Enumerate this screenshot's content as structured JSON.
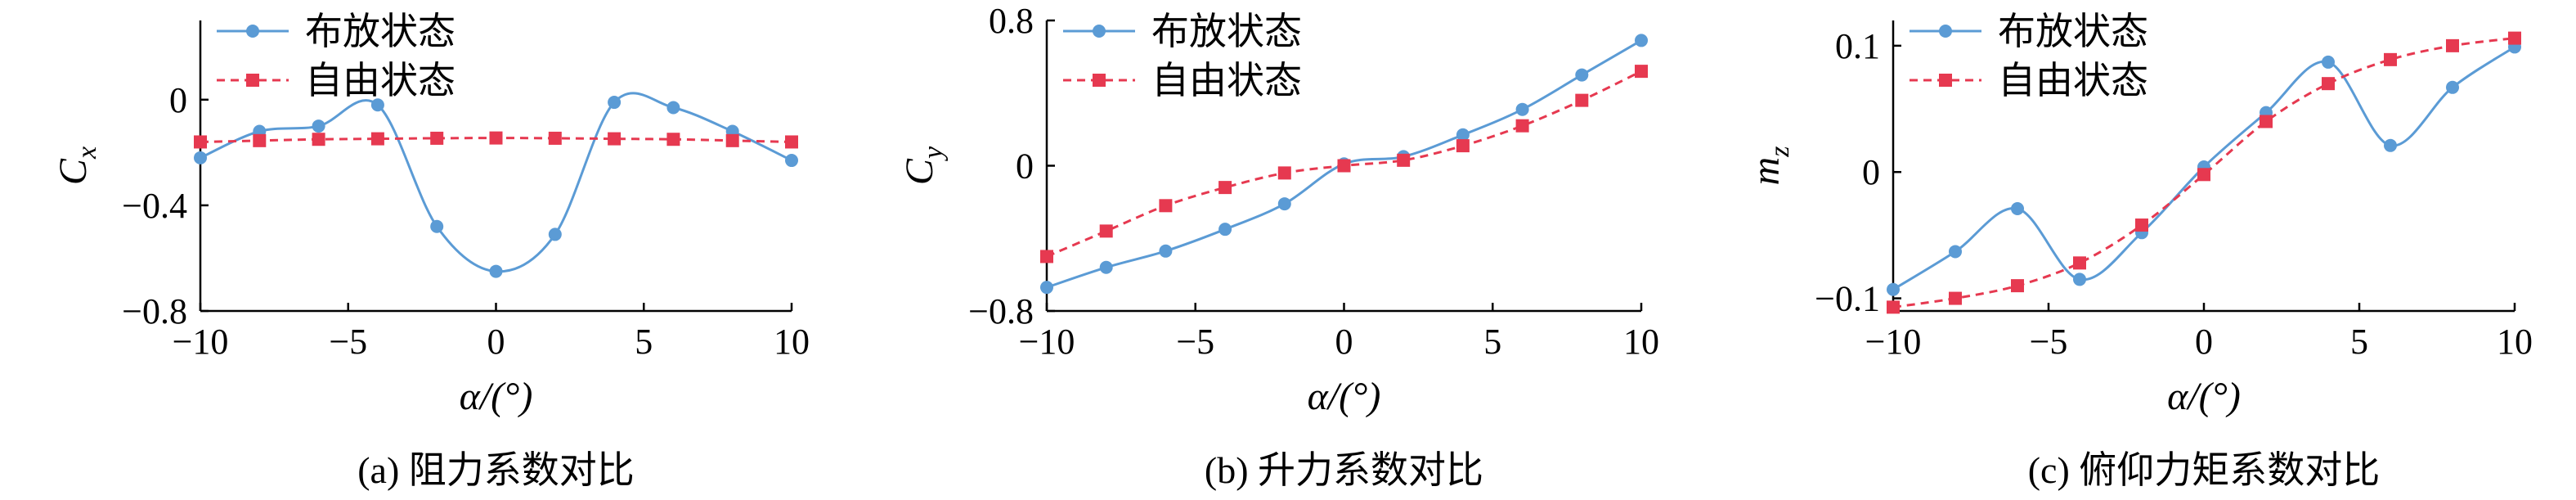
{
  "colors": {
    "deployed": "#5b9bd5",
    "free": "#e63950"
  },
  "chart_data": [
    {
      "type": "line",
      "caption": "(a) 阻力系数对比",
      "ylabel": "C",
      "ylabel_sub": "x",
      "xlabel": "α/(°)",
      "xlim": [
        -10,
        10
      ],
      "ylim": [
        -0.8,
        0.3
      ],
      "xticks": [
        -10,
        -5,
        0,
        5,
        10
      ],
      "xtick_labels": [
        "−10",
        "−5",
        "0",
        "5",
        "10"
      ],
      "yticks": [
        0,
        -0.4,
        -0.8
      ],
      "ytick_labels": [
        "0",
        "−0.4",
        "−0.8"
      ],
      "legend": "top",
      "series": [
        {
          "name": "布放状态",
          "style": "solid-circle",
          "x": [
            -10,
            -8,
            -6,
            -4,
            -2,
            0,
            2,
            4,
            6,
            8,
            10
          ],
          "y": [
            -0.22,
            -0.12,
            -0.1,
            -0.02,
            -0.48,
            -0.65,
            -0.51,
            -0.01,
            -0.03,
            -0.12,
            -0.23
          ]
        },
        {
          "name": "自由状态",
          "style": "dashed-square",
          "x": [
            -10,
            -8,
            -6,
            -4,
            -2,
            0,
            2,
            4,
            6,
            8,
            10
          ],
          "y": [
            -0.16,
            -0.155,
            -0.15,
            -0.148,
            -0.146,
            -0.145,
            -0.146,
            -0.148,
            -0.15,
            -0.155,
            -0.16
          ]
        }
      ]
    },
    {
      "type": "line",
      "caption": "(b) 升力系数对比",
      "ylabel": "C",
      "ylabel_sub": "y",
      "xlabel": "α/(°)",
      "xlim": [
        -10,
        10
      ],
      "ylim": [
        -0.8,
        0.8
      ],
      "xticks": [
        -10,
        -5,
        0,
        5,
        10
      ],
      "xtick_labels": [
        "−10",
        "−5",
        "0",
        "5",
        "10"
      ],
      "yticks": [
        0.8,
        0,
        -0.8
      ],
      "ytick_labels": [
        "0.8",
        "0",
        "−0.8"
      ],
      "legend": "top",
      "series": [
        {
          "name": "布放状态",
          "style": "solid-circle",
          "x": [
            -10,
            -8,
            -6,
            -4,
            -2,
            0,
            2,
            4,
            6,
            8,
            10
          ],
          "y": [
            -0.67,
            -0.56,
            -0.47,
            -0.35,
            -0.21,
            0.01,
            0.05,
            0.17,
            0.31,
            0.5,
            0.69
          ]
        },
        {
          "name": "自由状态",
          "style": "dashed-square",
          "x": [
            -10,
            -8,
            -6,
            -4,
            -2,
            0,
            2,
            4,
            6,
            8,
            10
          ],
          "y": [
            -0.5,
            -0.36,
            -0.22,
            -0.12,
            -0.04,
            0.0,
            0.03,
            0.11,
            0.22,
            0.36,
            0.52
          ]
        }
      ]
    },
    {
      "type": "line",
      "caption": "(c) 俯仰力矩系数对比",
      "ylabel": "m",
      "ylabel_sub": "z",
      "xlabel": "α/(°)",
      "xlim": [
        -10,
        10
      ],
      "ylim": [
        -0.11,
        0.12
      ],
      "xticks": [
        -10,
        -5,
        0,
        5,
        10
      ],
      "xtick_labels": [
        "−10",
        "−5",
        "0",
        "5",
        "10"
      ],
      "yticks": [
        0.1,
        0,
        -0.1
      ],
      "ytick_labels": [
        "0.1",
        "0",
        "−0.1"
      ],
      "legend": "top",
      "series": [
        {
          "name": "布放状态",
          "style": "solid-circle",
          "x": [
            -10,
            -8,
            -6,
            -4,
            -2,
            0,
            2,
            4,
            6,
            8,
            10
          ],
          "y": [
            -0.093,
            -0.063,
            -0.029,
            -0.085,
            -0.048,
            0.004,
            0.047,
            0.087,
            0.021,
            0.067,
            0.099
          ]
        },
        {
          "name": "自由状态",
          "style": "dashed-square",
          "x": [
            -10,
            -8,
            -6,
            -4,
            -2,
            0,
            2,
            4,
            6,
            8,
            10
          ],
          "y": [
            -0.107,
            -0.1,
            -0.09,
            -0.072,
            -0.042,
            -0.002,
            0.04,
            0.07,
            0.089,
            0.1,
            0.106
          ]
        }
      ]
    }
  ]
}
